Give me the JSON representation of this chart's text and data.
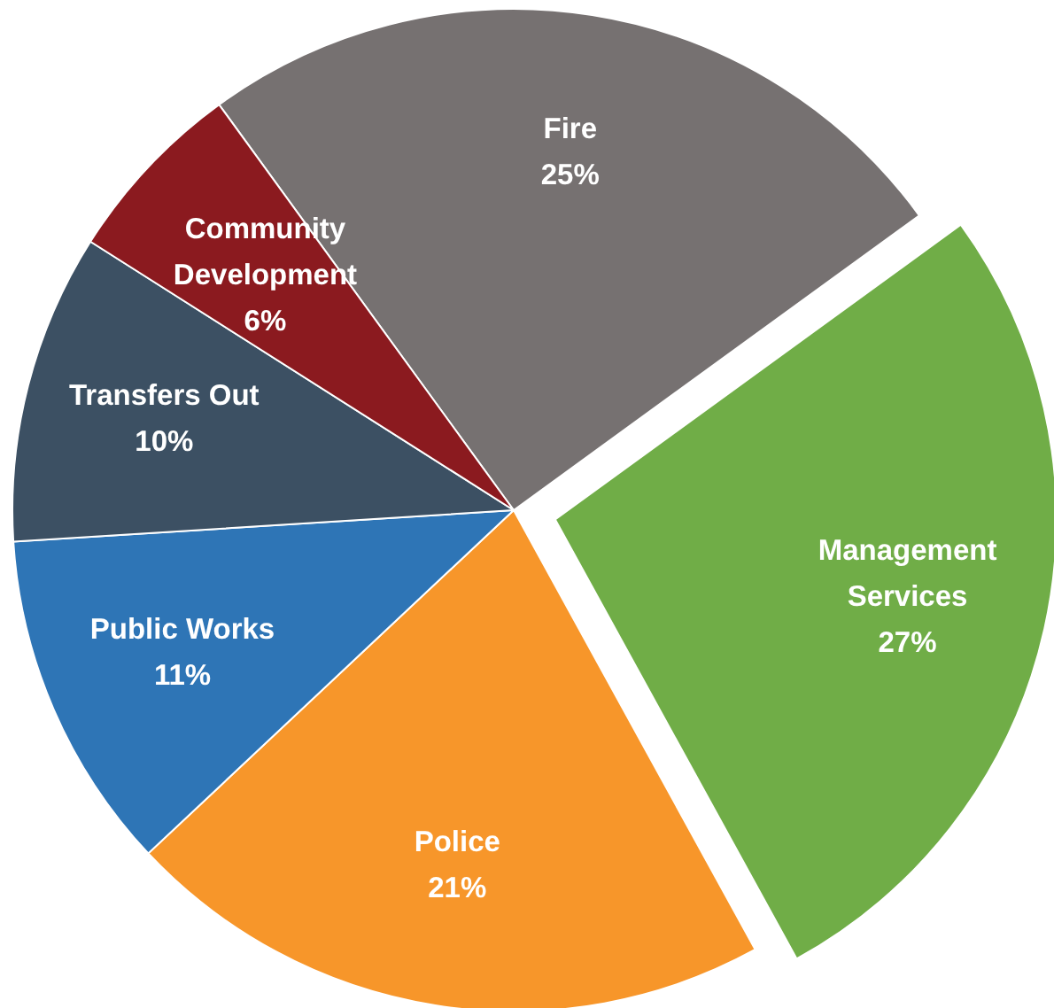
{
  "chart_data": {
    "type": "pie",
    "categories": [
      "Fire",
      "Management Services",
      "Police",
      "Public Works",
      "Transfers Out",
      "Community Development"
    ],
    "values": [
      25,
      27,
      21,
      11,
      10,
      6
    ],
    "colors": [
      "#767171",
      "#70ad47",
      "#f7962a",
      "#2e75b6",
      "#3c5063",
      "#8b1a1f"
    ],
    "value_labels": [
      "25%",
      "27%",
      "21%",
      "11%",
      "10%",
      "6%"
    ]
  }
}
